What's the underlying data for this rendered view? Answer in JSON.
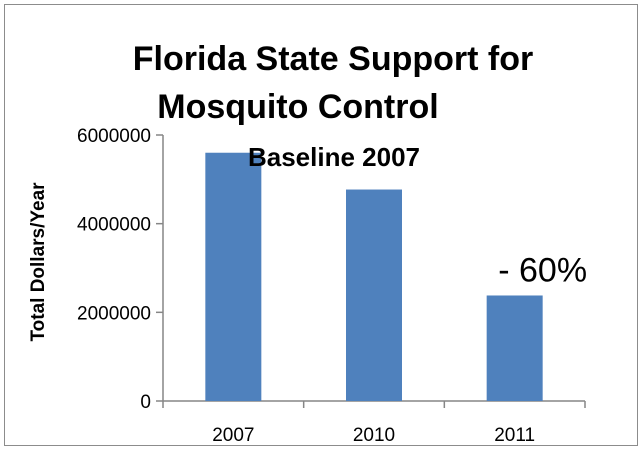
{
  "chart_data": {
    "type": "bar",
    "title_line1": "Florida State Support for",
    "title_line2": "Mosquito Control",
    "subtitle": "Baseline 2007",
    "ylabel": "Total Dollars/Year",
    "xlabel": "",
    "categories": [
      "2007",
      "2010",
      "2011"
    ],
    "values": [
      5600000,
      4770000,
      2380000
    ],
    "ylim": [
      0,
      6000000
    ],
    "yticks": [
      0,
      2000000,
      4000000,
      6000000
    ],
    "ytick_labels": [
      "0",
      "2000000",
      "4000000",
      "6000000"
    ],
    "grid": false,
    "legend": "none",
    "bar_color": "#4f81bd",
    "annotation": {
      "text": "-  60%",
      "category": "2011"
    }
  }
}
